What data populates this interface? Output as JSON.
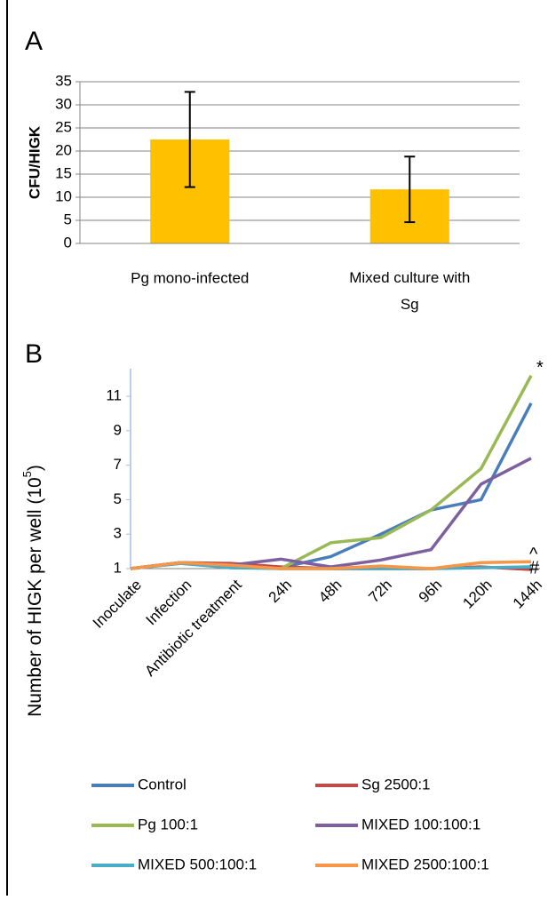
{
  "chart_data": [
    {
      "type": "bar",
      "panel": "A",
      "y_label": "CFU/HIGK",
      "categories": [
        "Pg mono-infected",
        "Mixed culture with Sg"
      ],
      "values": [
        22.5,
        11.7
      ],
      "errors": [
        10.3,
        7.1
      ],
      "color": "#ffc000",
      "ylim": [
        0,
        35
      ],
      "yticks": [
        0,
        5,
        10,
        15,
        20,
        25,
        30,
        35
      ],
      "grid": true
    },
    {
      "type": "line",
      "panel": "B",
      "y_label": "Number of HIGK per well (10",
      "y_label_superscript": "5",
      "y_label_end": ")",
      "categories": [
        "Inoculate",
        "Infection",
        "Antibiotic treatment",
        "24h",
        "48h",
        "72h",
        "96h",
        "120h",
        "144h"
      ],
      "series": [
        {
          "name": "Control",
          "color": "#4a7ebb",
          "values": [
            1.0,
            1.35,
            1.05,
            1.05,
            1.7,
            3.0,
            4.4,
            5.0,
            10.6
          ]
        },
        {
          "name": "Sg 2500:1",
          "color": "#be4b48",
          "values": [
            1.0,
            1.35,
            1.3,
            1.1,
            1.0,
            1.0,
            1.0,
            1.1,
            0.95
          ]
        },
        {
          "name": "Pg 100:1",
          "color": "#98b954",
          "values": [
            1.0,
            1.3,
            1.1,
            1.0,
            2.5,
            2.8,
            4.4,
            6.8,
            12.2
          ]
        },
        {
          "name": "MIXED 100:100:1",
          "color": "#7d60a0",
          "values": [
            1.0,
            1.35,
            1.2,
            1.55,
            1.1,
            1.5,
            2.1,
            5.9,
            7.4
          ]
        },
        {
          "name": "MIXED 500:100:1",
          "color": "#4bacc6",
          "values": [
            1.0,
            1.3,
            1.05,
            1.0,
            1.0,
            1.0,
            1.0,
            1.05,
            1.1
          ]
        },
        {
          "name": "MIXED 2500:100:1",
          "color": "#f79646",
          "values": [
            1.0,
            1.35,
            1.2,
            1.0,
            1.0,
            1.15,
            1.0,
            1.35,
            1.4
          ]
        }
      ],
      "annotations": [
        "*",
        "^",
        "#"
      ],
      "ylim": [
        1,
        12.6
      ],
      "yticks": [
        1,
        3,
        5,
        7,
        9,
        11
      ],
      "grid": false,
      "legend": "bottom"
    }
  ]
}
